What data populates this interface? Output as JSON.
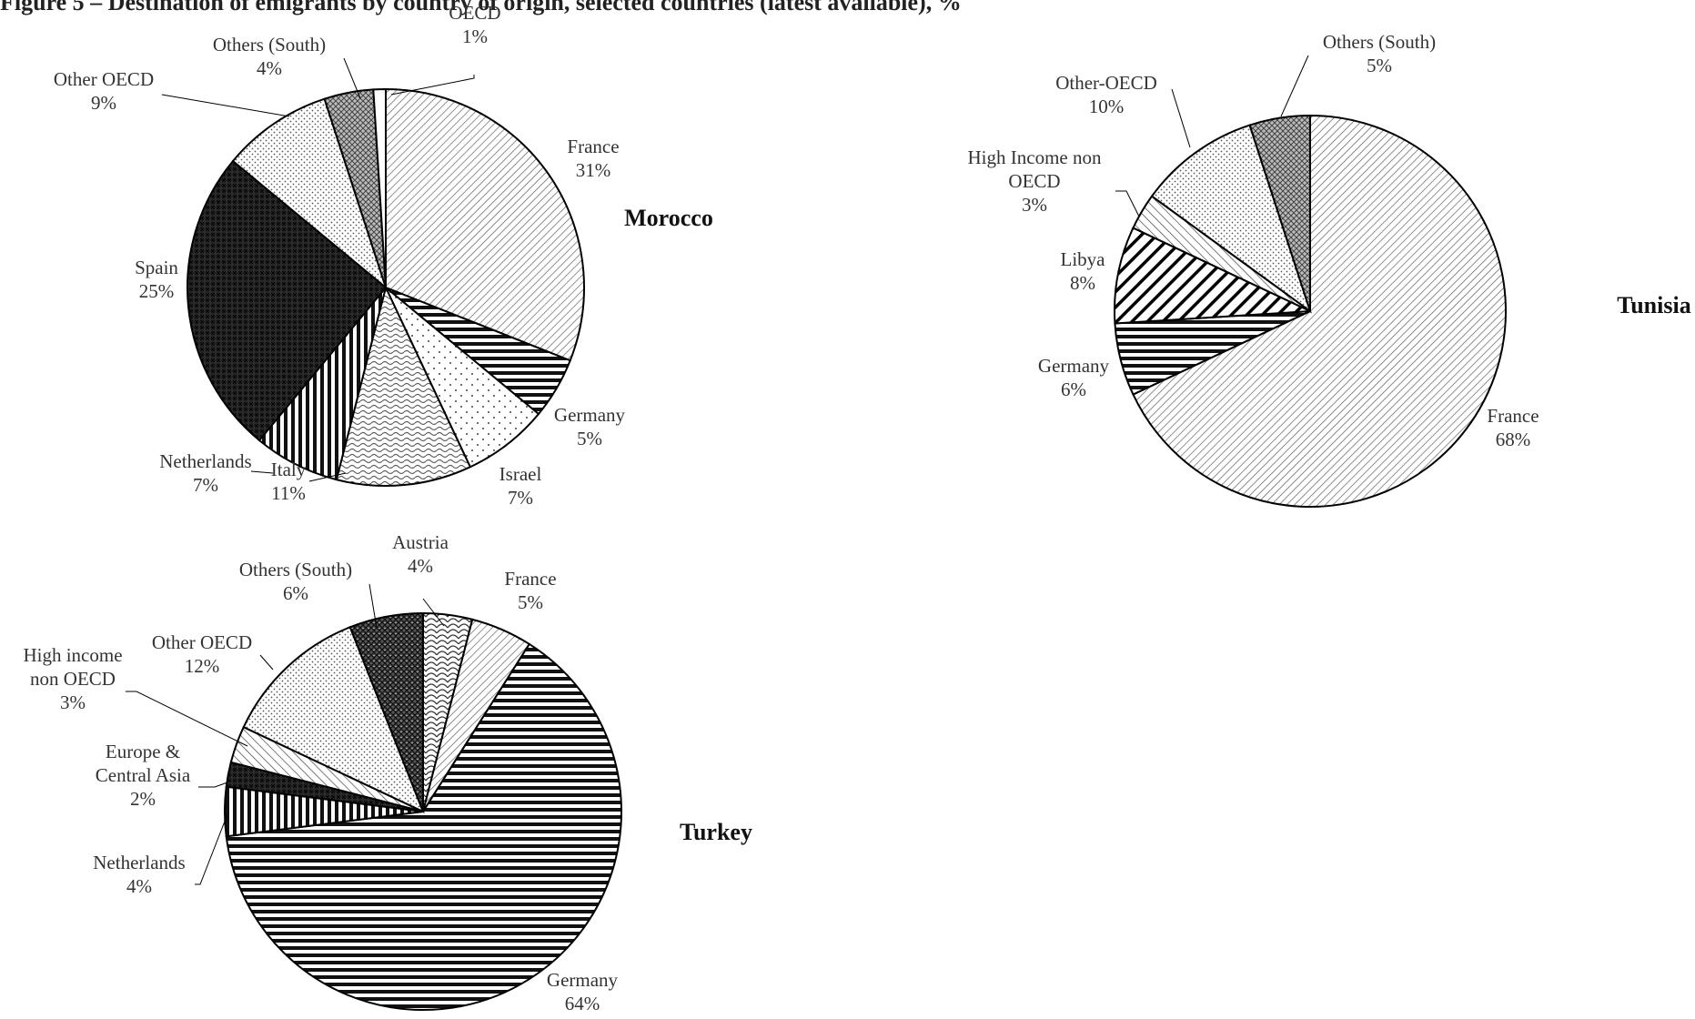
{
  "figure_title": "Figure 5 – Destination of emigrants by country of origin, selected countries (latest available), %",
  "chart_data": [
    {
      "type": "pie",
      "title": "Morocco",
      "slices": [
        {
          "name": "France",
          "value": 31,
          "pct_label": "31%",
          "pattern": "diag"
        },
        {
          "name": "Germany",
          "value": 5,
          "pct_label": "5%",
          "pattern": "hstripe"
        },
        {
          "name": "Israel",
          "value": 7,
          "pct_label": "7%",
          "pattern": "dots"
        },
        {
          "name": "Italy",
          "value": 11,
          "pct_label": "11%",
          "pattern": "wave"
        },
        {
          "name": "Netherlands",
          "value": 7,
          "pct_label": "7%",
          "pattern": "vstripe"
        },
        {
          "name": "Spain",
          "value": 25,
          "pct_label": "25%",
          "pattern": "darkcheck"
        },
        {
          "name": "Other OECD",
          "value": 9,
          "pct_label": "9%",
          "pattern": "finedots"
        },
        {
          "name": "Others (South)",
          "value": 4,
          "pct_label": "4%",
          "pattern": "check"
        },
        {
          "name": "OECD",
          "value": 1,
          "pct_label": "1%",
          "pattern": "white"
        }
      ]
    },
    {
      "type": "pie",
      "title": "Tunisia",
      "slices": [
        {
          "name": "France",
          "value": 68,
          "pct_label": "68%",
          "pattern": "diag"
        },
        {
          "name": "Germany",
          "value": 6,
          "pct_label": "6%",
          "pattern": "hstripe"
        },
        {
          "name": "Libya",
          "value": 8,
          "pct_label": "8%",
          "pattern": "bolddiag"
        },
        {
          "name": "High Income non OECD",
          "value": 3,
          "pct_label": "3%",
          "pattern": "diag2"
        },
        {
          "name": "Other-OECD",
          "value": 10,
          "pct_label": "10%",
          "pattern": "finedots"
        },
        {
          "name": "Others (South)",
          "value": 5,
          "pct_label": "5%",
          "pattern": "check"
        }
      ]
    },
    {
      "type": "pie",
      "title": "Turkey",
      "slices": [
        {
          "name": "Austria",
          "value": 4,
          "pct_label": "4%",
          "pattern": "scale"
        },
        {
          "name": "France",
          "value": 5,
          "pct_label": "5%",
          "pattern": "diag"
        },
        {
          "name": "Germany",
          "value": 64,
          "pct_label": "64%",
          "pattern": "hstripe"
        },
        {
          "name": "Netherlands",
          "value": 4,
          "pct_label": "4%",
          "pattern": "vstripe"
        },
        {
          "name": "Europe & Central Asia",
          "value": 2,
          "pct_label": "2%",
          "pattern": "darkcheck"
        },
        {
          "name": "High income non OECD",
          "value": 3,
          "pct_label": "3%",
          "pattern": "diag2"
        },
        {
          "name": "Other OECD",
          "value": 12,
          "pct_label": "12%",
          "pattern": "finedots"
        },
        {
          "name": "Others (South)",
          "value": 6,
          "pct_label": "6%",
          "pattern": "darkcheck2"
        }
      ]
    }
  ]
}
